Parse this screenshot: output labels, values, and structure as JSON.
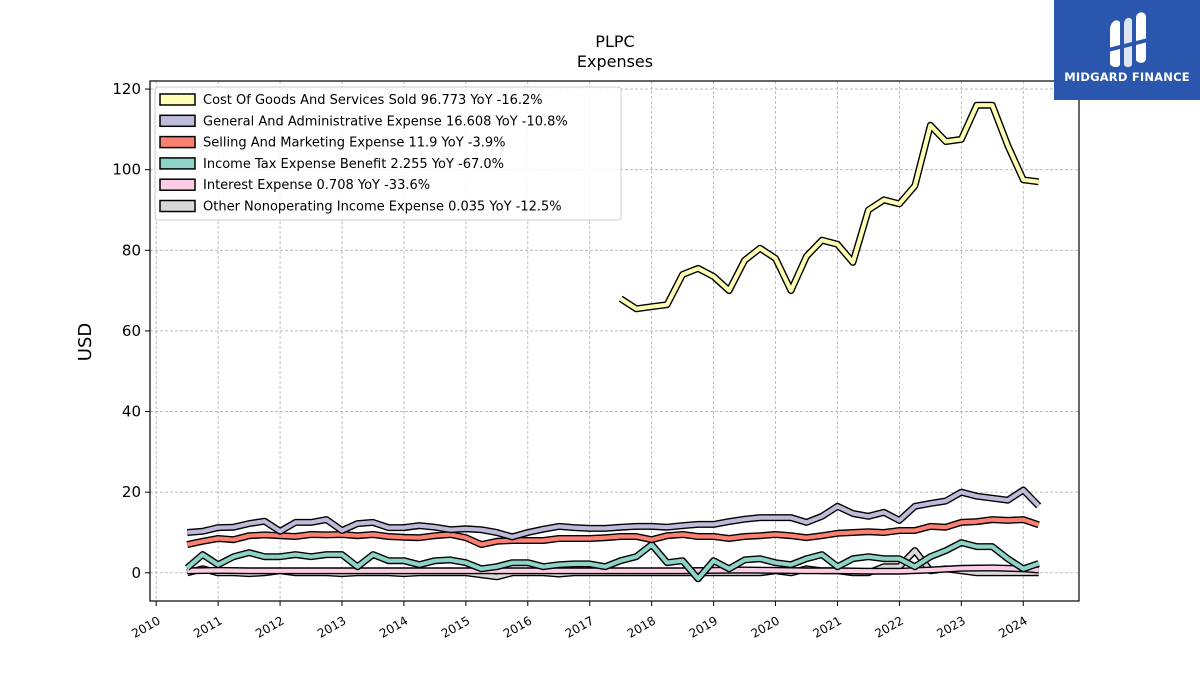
{
  "brand": {
    "name": "MIDGARD FINANCE",
    "logo_icon": "midgard-logo-icon",
    "color": "#2a57ad"
  },
  "chart_data": {
    "type": "line",
    "title": "PLPC",
    "subtitle": "Expenses",
    "xlabel": "",
    "ylabel": "USD",
    "xlim": [
      2009.9,
      2024.9
    ],
    "ylim": [
      -7,
      122
    ],
    "yticks": [
      0,
      20,
      40,
      60,
      80,
      100,
      120
    ],
    "xticks": [
      2010,
      2011,
      2012,
      2013,
      2014,
      2015,
      2016,
      2017,
      2018,
      2019,
      2020,
      2021,
      2022,
      2023,
      2024
    ],
    "grid": true,
    "legend": "top-left",
    "series": [
      {
        "name": "Cost Of Goods And Services Sold",
        "legend_label": "Cost Of Goods And Services Sold  96.773 YoY -16.2%",
        "color": "#ffffb3",
        "x": [
          2017.5,
          2017.75,
          2018.0,
          2018.25,
          2018.5,
          2018.75,
          2019.0,
          2019.25,
          2019.5,
          2019.75,
          2020.0,
          2020.25,
          2020.5,
          2020.75,
          2021.0,
          2021.25,
          2021.5,
          2021.75,
          2022.0,
          2022.25,
          2022.5,
          2022.75,
          2023.0,
          2023.25,
          2023.5,
          2023.75,
          2024.0,
          2024.25
        ],
        "y": [
          68,
          65.5,
          66,
          66.5,
          74,
          75.5,
          73.5,
          70,
          77.5,
          80.5,
          78,
          70,
          78.5,
          82.5,
          81.5,
          77,
          90,
          92.5,
          91.5,
          96,
          111,
          107,
          107.5,
          116,
          116,
          106,
          97.5,
          97
        ]
      },
      {
        "name": "General And Administrative Expense",
        "legend_label": "General And Administrative Expense  16.608 YoY -10.8%",
        "color": "#bebada",
        "x": [
          2010.5,
          2010.75,
          2011.0,
          2011.25,
          2011.5,
          2011.75,
          2012.0,
          2012.25,
          2012.5,
          2012.75,
          2013.0,
          2013.25,
          2013.5,
          2013.75,
          2014.0,
          2014.25,
          2014.5,
          2014.75,
          2015.0,
          2015.25,
          2015.5,
          2015.75,
          2016.0,
          2016.25,
          2016.5,
          2016.75,
          2017.0,
          2017.25,
          2017.5,
          2017.75,
          2018.0,
          2018.25,
          2018.5,
          2018.75,
          2019.0,
          2019.25,
          2019.5,
          2019.75,
          2020.0,
          2020.25,
          2020.5,
          2020.75,
          2021.0,
          2021.25,
          2021.5,
          2021.75,
          2022.0,
          2022.25,
          2022.5,
          2022.75,
          2023.0,
          2023.25,
          2023.5,
          2023.75,
          2024.0,
          2024.25
        ],
        "y": [
          10,
          10.3,
          11.2,
          11.3,
          12.2,
          12.8,
          10.3,
          12.5,
          12.5,
          13.2,
          10.5,
          12.2,
          12.5,
          11.2,
          11.2,
          11.7,
          11.3,
          10.7,
          10.9,
          10.7,
          10,
          8.9,
          10,
          10.8,
          11.5,
          11.2,
          11,
          11,
          11.3,
          11.5,
          11.5,
          11.3,
          11.7,
          12,
          12,
          12.7,
          13.3,
          13.7,
          13.7,
          13.7,
          12.5,
          14,
          16.5,
          14.7,
          14,
          15,
          13,
          16.5,
          17.2,
          17.8,
          20,
          19,
          18.5,
          18,
          20.5,
          16.6
        ]
      },
      {
        "name": "Selling And Marketing Expense",
        "legend_label": "Selling And Marketing Expense  11.9 YoY -3.9%",
        "color": "#fb8072",
        "x": [
          2010.5,
          2010.75,
          2011.0,
          2011.25,
          2011.5,
          2011.75,
          2012.0,
          2012.25,
          2012.5,
          2012.75,
          2013.0,
          2013.25,
          2013.5,
          2013.75,
          2014.0,
          2014.25,
          2014.5,
          2014.75,
          2015.0,
          2015.25,
          2015.5,
          2015.75,
          2016.0,
          2016.25,
          2016.5,
          2016.75,
          2017.0,
          2017.25,
          2017.5,
          2017.75,
          2018.0,
          2018.25,
          2018.5,
          2018.75,
          2019.0,
          2019.25,
          2019.5,
          2019.75,
          2020.0,
          2020.25,
          2020.5,
          2020.75,
          2021.0,
          2021.25,
          2021.5,
          2021.75,
          2022.0,
          2022.25,
          2022.5,
          2022.75,
          2023.0,
          2023.25,
          2023.5,
          2023.75,
          2024.0,
          2024.25
        ],
        "y": [
          7,
          7.8,
          8.5,
          8.2,
          9.2,
          9.4,
          9.2,
          9,
          9.5,
          9.4,
          9.5,
          9.2,
          9.5,
          9,
          8.8,
          8.7,
          9.2,
          9.5,
          8.7,
          7,
          7.8,
          8,
          8,
          8,
          8.5,
          8.5,
          8.5,
          8.7,
          9,
          9,
          8.2,
          9.2,
          9.5,
          9,
          9,
          8.5,
          9,
          9.2,
          9.5,
          9.2,
          8.7,
          9.2,
          9.8,
          10,
          10.2,
          10,
          10.5,
          10.5,
          11.5,
          11.3,
          12.5,
          12.7,
          13.2,
          13,
          13.2,
          11.9
        ]
      },
      {
        "name": "Income Tax Expense Benefit",
        "legend_label": "Income Tax Expense Benefit  2.255 YoY -67.0%",
        "color": "#8dd3c7",
        "x": [
          2010.5,
          2010.75,
          2011.0,
          2011.25,
          2011.5,
          2011.75,
          2012.0,
          2012.25,
          2012.5,
          2012.75,
          2013.0,
          2013.25,
          2013.5,
          2013.75,
          2014.0,
          2014.25,
          2014.5,
          2014.75,
          2015.0,
          2015.25,
          2015.5,
          2015.75,
          2016.0,
          2016.25,
          2016.5,
          2016.75,
          2017.0,
          2017.25,
          2017.5,
          2017.75,
          2018.0,
          2018.25,
          2018.5,
          2018.75,
          2019.0,
          2019.25,
          2019.5,
          2019.75,
          2020.0,
          2020.25,
          2020.5,
          2020.75,
          2021.0,
          2021.25,
          2021.5,
          2021.75,
          2022.0,
          2022.25,
          2022.5,
          2022.75,
          2023.0,
          2023.25,
          2023.5,
          2023.75,
          2024.0,
          2024.25
        ],
        "y": [
          1.2,
          4.5,
          2,
          4,
          5,
          4,
          4,
          4.5,
          4,
          4.5,
          4.5,
          1.5,
          4.5,
          3,
          3,
          2,
          3,
          3.2,
          2.5,
          1,
          1.5,
          2.5,
          2.5,
          1.5,
          2,
          2.2,
          2.2,
          1.5,
          3,
          4,
          7,
          2.5,
          3,
          -1.5,
          3,
          1,
          3.2,
          3.5,
          2.5,
          2,
          3.5,
          4.5,
          1.5,
          3.5,
          4,
          3.5,
          3.5,
          1.5,
          4,
          5.5,
          7.5,
          6.5,
          6.5,
          3.5,
          1,
          2.3
        ]
      },
      {
        "name": "Interest Expense",
        "legend_label": "Interest Expense  0.708 YoY -33.6%",
        "color": "#fccde5",
        "x": [
          2010.5,
          2011.0,
          2011.5,
          2012.0,
          2012.5,
          2013.0,
          2013.5,
          2014.0,
          2014.5,
          2015.0,
          2015.5,
          2016.0,
          2016.5,
          2017.0,
          2017.5,
          2018.0,
          2018.5,
          2019.0,
          2019.5,
          2020.0,
          2020.5,
          2021.0,
          2021.5,
          2022.0,
          2022.5,
          2023.0,
          2023.5,
          2024.0,
          2024.25
        ],
        "y": [
          0.5,
          0.6,
          0.5,
          0.5,
          0.5,
          0.5,
          0.5,
          0.5,
          0.5,
          0.5,
          0.5,
          0.5,
          0.5,
          0.5,
          0.5,
          0.5,
          0.5,
          0.6,
          0.7,
          0.6,
          0.5,
          0.5,
          0.4,
          0.4,
          0.7,
          1.1,
          1.2,
          1.0,
          0.7
        ]
      },
      {
        "name": "Other Nonoperating Income Expense",
        "legend_label": "Other Nonoperating Income Expense  0.035 YoY -12.5%",
        "color": "#d9d9d9",
        "x": [
          2010.5,
          2010.75,
          2011.0,
          2011.25,
          2011.5,
          2011.75,
          2012.0,
          2012.25,
          2012.5,
          2012.75,
          2013.0,
          2013.25,
          2013.5,
          2013.75,
          2014.0,
          2014.25,
          2014.5,
          2014.75,
          2015.0,
          2015.25,
          2015.5,
          2015.75,
          2016.0,
          2016.25,
          2016.5,
          2016.75,
          2017.0,
          2017.25,
          2017.5,
          2017.75,
          2018.0,
          2018.25,
          2018.5,
          2018.75,
          2019.0,
          2019.25,
          2019.5,
          2019.75,
          2020.0,
          2020.25,
          2020.5,
          2020.75,
          2021.0,
          2021.25,
          2021.5,
          2021.75,
          2022.0,
          2022.25,
          2022.5,
          2022.75,
          2023.0,
          2023.25,
          2023.5,
          2023.75,
          2024.0,
          2024.25
        ],
        "y": [
          0,
          1,
          0,
          0,
          -0.2,
          0,
          0.5,
          0,
          0,
          0,
          -0.2,
          0,
          0,
          0,
          -0.2,
          0,
          0,
          0,
          0,
          -0.5,
          -1,
          0,
          0,
          0,
          -0.3,
          0,
          0,
          0,
          0,
          0,
          0,
          0,
          0,
          0,
          0,
          0,
          0,
          0,
          0.5,
          0,
          1,
          0.5,
          0.5,
          0,
          0,
          1.5,
          1.5,
          5.5,
          0.5,
          1,
          0.5,
          0,
          0,
          0,
          0,
          0.03
        ]
      }
    ]
  }
}
